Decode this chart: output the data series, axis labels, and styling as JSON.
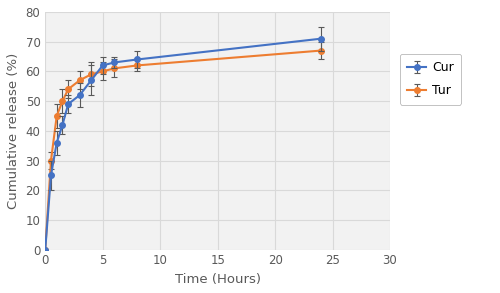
{
  "cur_x": [
    0,
    0.5,
    1,
    1.5,
    2,
    3,
    4,
    5,
    6,
    8,
    24
  ],
  "cur_y": [
    0,
    25,
    36,
    42,
    49,
    52,
    57,
    62,
    63,
    64,
    71
  ],
  "cur_yerr": [
    0,
    5,
    4,
    3,
    3,
    4,
    5,
    3,
    2,
    3,
    4
  ],
  "tur_x": [
    0,
    0.5,
    1,
    1.5,
    2,
    3,
    4,
    5,
    6,
    8,
    24
  ],
  "tur_y": [
    0,
    30,
    45,
    50,
    54,
    57,
    59,
    60,
    61,
    62,
    67
  ],
  "tur_yerr": [
    0,
    3,
    4,
    4,
    3,
    3,
    4,
    3,
    3,
    2,
    3
  ],
  "cur_color": "#4472C4",
  "tur_color": "#ED7D31",
  "marker": "o",
  "markersize": 4,
  "linewidth": 1.5,
  "xlabel": "Time (Hours)",
  "ylabel": "Cumulative release (%)",
  "xlim": [
    0,
    30
  ],
  "ylim": [
    0,
    80
  ],
  "xticks": [
    0,
    5,
    10,
    15,
    20,
    25,
    30
  ],
  "yticks": [
    0,
    10,
    20,
    30,
    40,
    50,
    60,
    70,
    80
  ],
  "legend_labels": [
    "Cur",
    "Tur"
  ],
  "grid_color": "#D9D9D9",
  "plot_bg_color": "#F2F2F2",
  "fig_bg_color": "#FFFFFF",
  "ecolor": "#595959",
  "capsize": 2,
  "tick_color": "#595959",
  "tick_fontsize": 8.5,
  "label_fontsize": 9.5,
  "legend_fontsize": 9
}
